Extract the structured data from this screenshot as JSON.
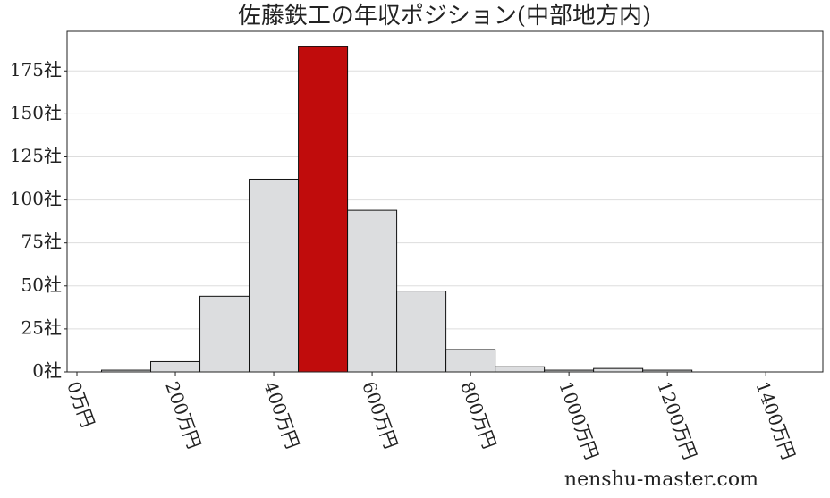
{
  "chart_data": {
    "type": "histogram",
    "title": "佐藤鉄工の年収ポジション(中部地方内)",
    "bins": [
      50,
      150,
      250,
      350,
      450,
      550,
      650,
      750,
      850,
      950,
      1050,
      1150,
      1250
    ],
    "counts": [
      1,
      6,
      44,
      112,
      189,
      94,
      47,
      13,
      3,
      1,
      2,
      1
    ],
    "colors": [
      "#dcdddf",
      "#dcdddf",
      "#dcdddf",
      "#dcdddf",
      "#c00c0c",
      "#dcdddf",
      "#dcdddf",
      "#dcdddf",
      "#dcdddf",
      "#dcdddf",
      "#dcdddf",
      "#dcdddf"
    ],
    "xlim": [
      -20,
      1516
    ],
    "ylim": [
      0,
      198
    ],
    "xticks": [
      {
        "value": 0,
        "label": "0万円"
      },
      {
        "value": 200,
        "label": "200万円"
      },
      {
        "value": 400,
        "label": "400万円"
      },
      {
        "value": 600,
        "label": "600万円"
      },
      {
        "value": 800,
        "label": "800万円"
      },
      {
        "value": 1000,
        "label": "1000万円"
      },
      {
        "value": 1200,
        "label": "1200万円"
      },
      {
        "value": 1400,
        "label": "1400万円"
      }
    ],
    "yticks": [
      {
        "value": 0,
        "label": "0社"
      },
      {
        "value": 25,
        "label": "25社"
      },
      {
        "value": 50,
        "label": "50社"
      },
      {
        "value": 75,
        "label": "75社"
      },
      {
        "value": 100,
        "label": "100社"
      },
      {
        "value": 125,
        "label": "125社"
      },
      {
        "value": 150,
        "label": "150社"
      },
      {
        "value": 175,
        "label": "175社"
      }
    ],
    "grid": true,
    "watermark": "nenshu-master.com"
  }
}
